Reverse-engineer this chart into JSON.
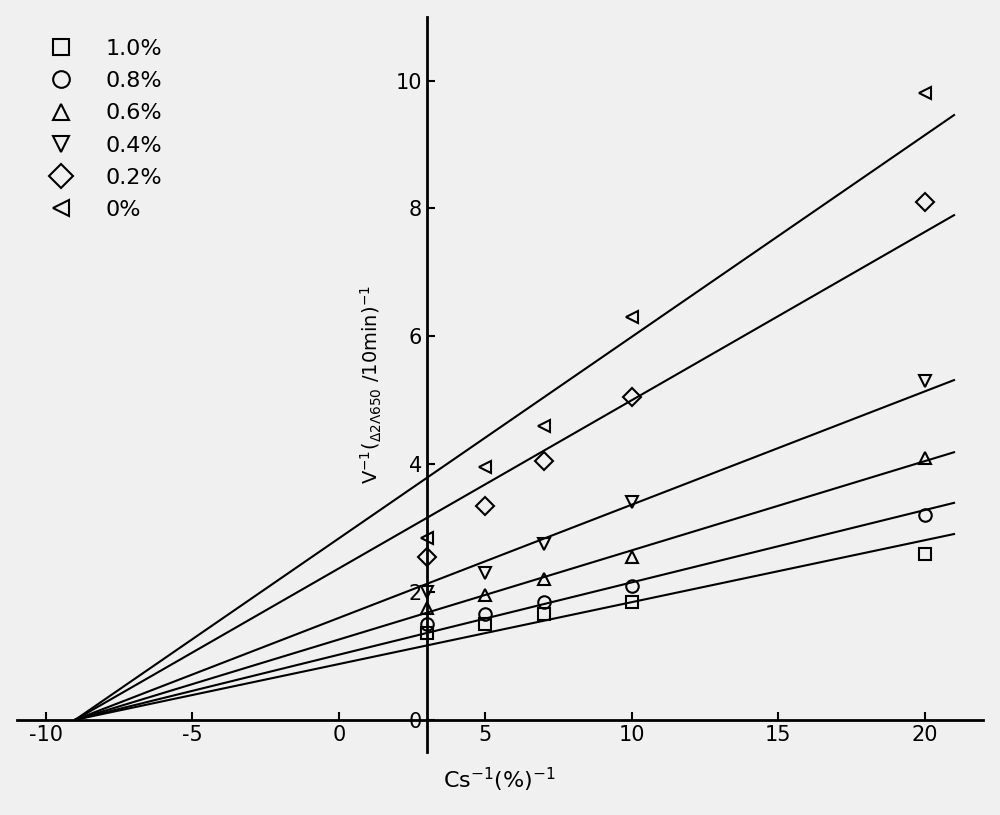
{
  "series": [
    {
      "label": "1.0%",
      "marker": "s",
      "x_data": [
        3,
        5,
        7,
        10,
        20
      ],
      "y_data": [
        1.35,
        1.5,
        1.65,
        1.85,
        2.6
      ]
    },
    {
      "label": "0.8%",
      "marker": "o",
      "x_data": [
        3,
        5,
        7,
        10,
        20
      ],
      "y_data": [
        1.5,
        1.65,
        1.85,
        2.1,
        3.2
      ]
    },
    {
      "label": "0.6%",
      "marker": "^",
      "x_data": [
        3,
        5,
        7,
        10,
        20
      ],
      "y_data": [
        1.75,
        1.95,
        2.2,
        2.55,
        4.1
      ]
    },
    {
      "label": "0.4%",
      "marker": "v",
      "x_data": [
        3,
        5,
        7,
        10,
        20
      ],
      "y_data": [
        2.0,
        2.3,
        2.75,
        3.4,
        5.3
      ]
    },
    {
      "label": "0.2%",
      "marker": "D",
      "x_data": [
        3,
        5,
        7,
        10,
        20
      ],
      "y_data": [
        2.55,
        3.35,
        4.05,
        5.05,
        8.1
      ]
    },
    {
      "label": "0%",
      "marker": "<",
      "x_data": [
        3,
        5,
        7,
        10,
        20
      ],
      "y_data": [
        2.85,
        3.95,
        4.6,
        6.3,
        9.8
      ]
    }
  ],
  "converge_x": -9.0,
  "line_x_end": 21.0,
  "xlim": [
    -11,
    22
  ],
  "ylim": [
    -0.5,
    11
  ],
  "xticks": [
    -10,
    -5,
    0,
    5,
    10,
    15,
    20
  ],
  "yticks": [
    0,
    2,
    4,
    6,
    8,
    10
  ],
  "xlabel": "Cs$^{-1}$(%)$^{-1}$",
  "ylabel_main": "V",
  "bg_color": "#f0f0f0",
  "line_color": "#000000",
  "marker_facecolor": "none",
  "marker_edge_color": "#000000",
  "marker_size": 9,
  "marker_edge_width": 1.5,
  "line_width": 1.5,
  "font_size": 15,
  "legend_fontsize": 16,
  "legend_marker_size": 12,
  "spine_linewidth": 2.0,
  "left_spine_x": 3,
  "bottom_spine_y": 0
}
